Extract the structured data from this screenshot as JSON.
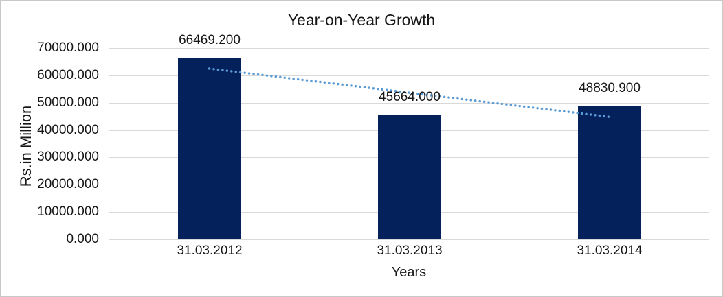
{
  "chart_data": {
    "type": "bar",
    "title": "Year-on-Year Growth",
    "xlabel": "Years",
    "ylabel": "Rs.in Million",
    "categories": [
      "31.03.2012",
      "31.03.2013",
      "31.03.2014"
    ],
    "values": [
      66469.2,
      45664.0,
      48830.9
    ],
    "data_labels": [
      "66469.200",
      "45664.000",
      "48830.900"
    ],
    "ylim": [
      0,
      70000
    ],
    "ytick_step": 10000,
    "ytick_labels": [
      "0.000",
      "10000.000",
      "20000.000",
      "30000.000",
      "40000.000",
      "50000.000",
      "60000.000",
      "70000.000"
    ],
    "grid": "horizontal",
    "legend": "none",
    "trendline": {
      "type": "linear",
      "style": "dotted",
      "start_value": 62474,
      "end_value": 44836
    },
    "colors": {
      "bar": "#04215C",
      "trendline": "#5B9BD5",
      "gridline": "#D9D9D9",
      "text": "#161616",
      "frame_border": "#C8C8C8",
      "background": "#FFFFFF"
    }
  }
}
